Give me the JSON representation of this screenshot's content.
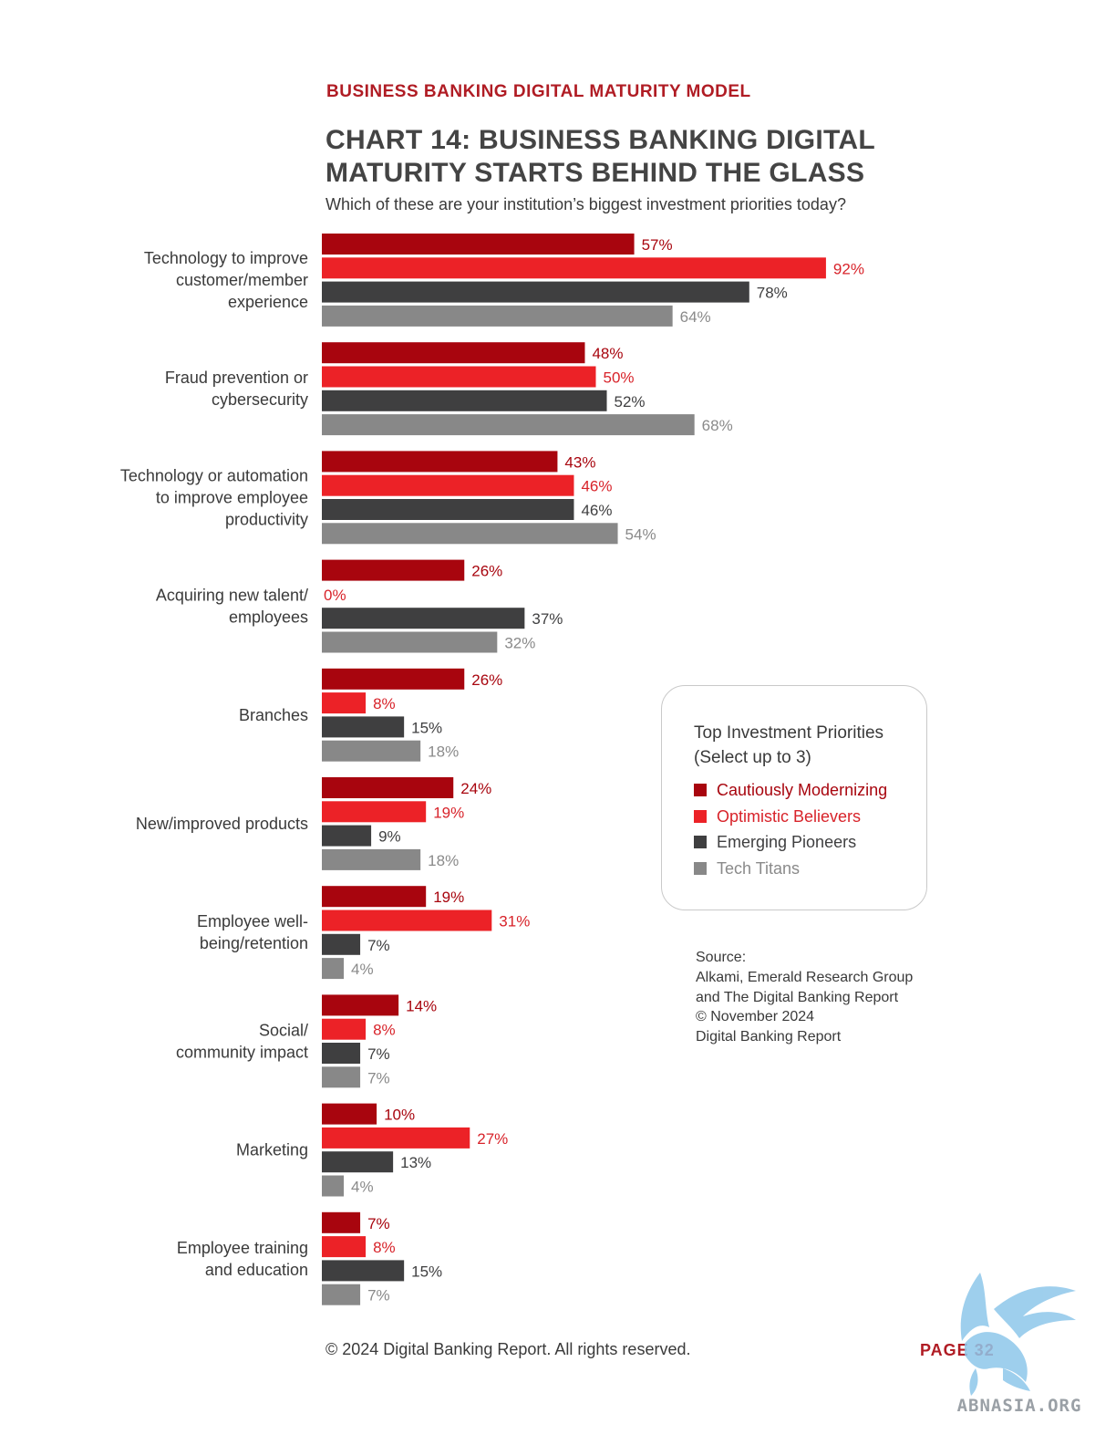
{
  "header": {
    "kicker": "BUSINESS BANKING DIGITAL MATURITY MODEL",
    "title": "CHART 14: BUSINESS BANKING DIGITAL MATURITY STARTS BEHIND THE GLASS",
    "subtitle": "Which of these are your institution’s biggest investment priorities today?"
  },
  "chart_data": {
    "type": "bar",
    "orientation": "horizontal",
    "value_suffix": "%",
    "xlim": [
      0,
      100
    ],
    "grid": false,
    "categories": [
      [
        "Technology to improve",
        "customer/member",
        "experience"
      ],
      [
        "Fraud prevention or",
        "cybersecurity"
      ],
      [
        "Technology or automation",
        "to improve employee",
        "productivity"
      ],
      [
        "Acquiring new talent/",
        "employees"
      ],
      [
        "Branches"
      ],
      [
        "New/improved products"
      ],
      [
        "Employee well-",
        "being/retention"
      ],
      [
        "Social/",
        "community impact"
      ],
      [
        "Marketing"
      ],
      [
        "Employee training",
        "and education"
      ]
    ],
    "series": [
      {
        "name": "Cautiously Modernizing",
        "color": "#a8050e",
        "label_color": "#a8050e",
        "values": [
          57,
          48,
          43,
          26,
          26,
          24,
          19,
          14,
          10,
          7
        ]
      },
      {
        "name": "Optimistic Believers",
        "color": "#ec2227",
        "label_color": "#d8232a",
        "values": [
          92,
          50,
          46,
          0,
          8,
          19,
          31,
          8,
          27,
          8
        ]
      },
      {
        "name": "Emerging Pioneers",
        "color": "#3f3f40",
        "label_color": "#3f3f40",
        "values": [
          78,
          52,
          46,
          37,
          15,
          9,
          7,
          7,
          13,
          15
        ]
      },
      {
        "name": "Tech Titans",
        "color": "#888888",
        "label_color": "#8a8a8a",
        "values": [
          64,
          68,
          54,
          32,
          18,
          18,
          4,
          7,
          4,
          7
        ]
      }
    ],
    "legend": {
      "title_lines": [
        "Top Investment Priorities",
        "(Select up to 3)"
      ],
      "placement": "right"
    }
  },
  "source": {
    "lines": [
      "Source:",
      "Alkami, Emerald Research Group",
      "and The Digital Banking Report",
      "© November 2024",
      "Digital Banking Report"
    ]
  },
  "footer": {
    "copyright": "© 2024 Digital Banking Report. All rights reserved.",
    "page": "PAGE 32"
  },
  "watermark": {
    "text": "ABNASIA.ORG",
    "icon": "griffin-logo-icon"
  }
}
